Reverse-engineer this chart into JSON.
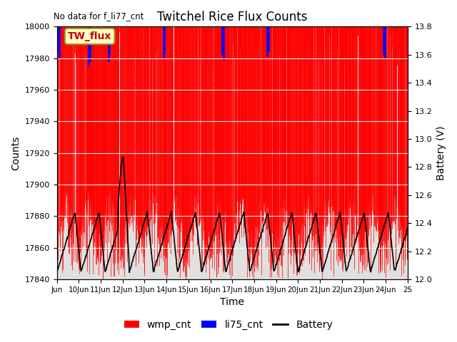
{
  "title": "Twitchel Rice Flux Counts",
  "no_data_text": "No data for f_li77_cnt",
  "ylabel_left": "Counts",
  "ylabel_right": "Battery (V)",
  "xlabel": "Time",
  "annotation_box": "TW_flux",
  "xlim": [
    0,
    16
  ],
  "ylim_left": [
    17840,
    18000
  ],
  "ylim_right": [
    12.0,
    13.8
  ],
  "xtick_labels": [
    "Jun",
    "10Jun",
    "11Jun",
    "12Jun",
    "13Jun",
    "14Jun",
    "15Jun",
    "16Jun",
    "17Jun",
    "18Jun",
    "19Jun",
    "20Jun",
    "21Jun",
    "22Jun",
    "23Jun",
    "24Jun",
    "25"
  ],
  "xtick_positions": [
    0,
    1,
    2,
    3,
    4,
    5,
    6,
    7,
    8,
    9,
    10,
    11,
    12,
    13,
    14,
    15,
    16
  ],
  "yticks_left": [
    17840,
    17860,
    17880,
    17900,
    17920,
    17940,
    17960,
    17980,
    18000
  ],
  "yticks_right": [
    12.0,
    12.2,
    12.4,
    12.6,
    12.8,
    13.0,
    13.2,
    13.4,
    13.6,
    13.8
  ],
  "background_color": "#ffffff",
  "plot_bg_color": "#e0e0e0",
  "wmp_color": "#ff0000",
  "li75_color": "#0000ff",
  "battery_color": "#000000",
  "legend_entries": [
    "wmp_cnt",
    "li75_cnt",
    "Battery"
  ],
  "annotation_box_color": "#ffffcc",
  "annotation_box_border": "#999900"
}
